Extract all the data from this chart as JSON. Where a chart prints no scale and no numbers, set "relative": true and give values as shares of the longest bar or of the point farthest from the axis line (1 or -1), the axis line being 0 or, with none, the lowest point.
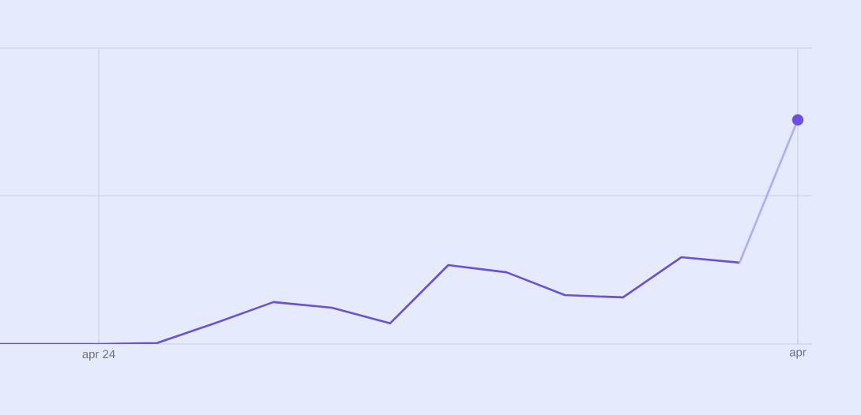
{
  "chart_data": {
    "type": "line",
    "relative": true,
    "grid": true,
    "categories": [
      null,
      null,
      "apr 24",
      null,
      null,
      null,
      null,
      null,
      null,
      null,
      null,
      null,
      null,
      null,
      "apr"
    ],
    "series": [
      {
        "color": "#6b4fe0",
        "values": [
          0,
          0,
          0,
          0.004,
          0.093,
          0.187,
          0.162,
          0.092,
          0.352,
          0.32,
          0.218,
          0.208,
          0.387,
          0.363,
          null
        ]
      },
      {
        "color": "#b4acf6",
        "values": [
          null,
          null,
          null,
          null,
          null,
          null,
          null,
          null,
          null,
          null,
          null,
          null,
          null,
          0.363,
          1
        ]
      },
      {
        "type": "scatter",
        "marker": "circle",
        "color": "#6b4fe0",
        "values": [
          null,
          null,
          null,
          null,
          null,
          null,
          null,
          null,
          null,
          null,
          null,
          null,
          null,
          null,
          1
        ]
      }
    ]
  }
}
